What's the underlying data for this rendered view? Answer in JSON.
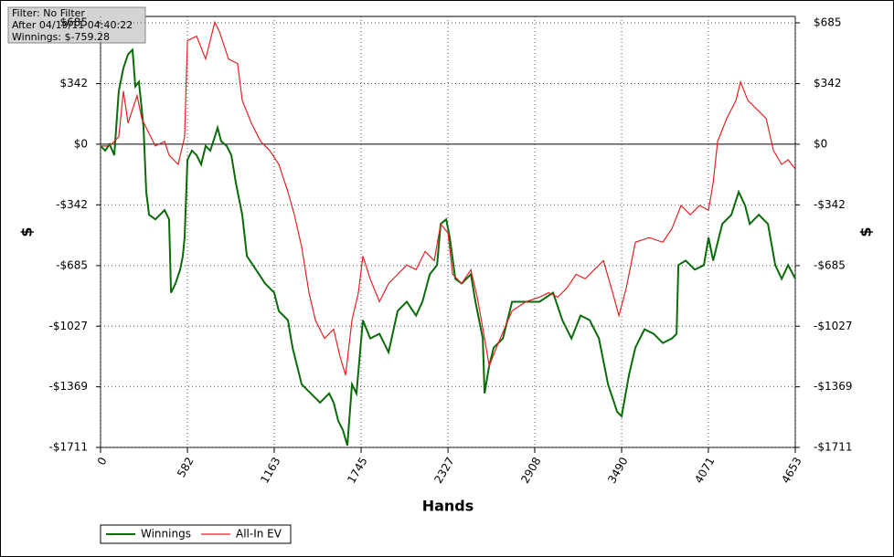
{
  "chart_data": {
    "type": "line",
    "annotations": [
      "Filter: No Filter",
      "After 04/19/11 04:40:22",
      "Winnings: $-759.28"
    ],
    "x_label": "Hands",
    "y_label": "$",
    "xlim": [
      0,
      4653
    ],
    "xticks": [
      0,
      582,
      1163,
      1745,
      2327,
      2908,
      3490,
      4071,
      4653
    ],
    "ylim": [
      -1711,
      721
    ],
    "yticks": [
      {
        "value": 685,
        "label": "$685"
      },
      {
        "value": 342,
        "label": "$342"
      },
      {
        "value": 0,
        "label": "$0"
      },
      {
        "value": -342,
        "label": "-$342"
      },
      {
        "value": -685,
        "label": "-$685"
      },
      {
        "value": -1027,
        "label": "-$1027"
      },
      {
        "value": -1369,
        "label": "-$1369"
      },
      {
        "value": -1711,
        "label": "-$1711"
      }
    ],
    "grid": true,
    "zero_line": true,
    "legend": "bottom-left",
    "series": [
      {
        "name": "Winnings",
        "color": "#0b6b0b",
        "x": [
          0,
          31,
          61,
          92,
          122,
          153,
          184,
          214,
          233,
          257,
          276,
          288,
          306,
          325,
          367,
          398,
          429,
          459,
          472,
          502,
          533,
          551,
          563,
          582,
          612,
          643,
          674,
          704,
          735,
          765,
          784,
          808,
          845,
          876,
          906,
          949,
          980,
          1041,
          1102,
          1163,
          1194,
          1255,
          1286,
          1347,
          1408,
          1470,
          1531,
          1561,
          1592,
          1623,
          1653,
          1684,
          1714,
          1757,
          1806,
          1868,
          1929,
          1990,
          2051,
          2113,
          2156,
          2205,
          2254,
          2278,
          2315,
          2339,
          2376,
          2419,
          2480,
          2511,
          2560,
          2572,
          2603,
          2633,
          2695,
          2756,
          2848,
          2940,
          3031,
          3093,
          3154,
          3215,
          3276,
          3338,
          3399,
          3460,
          3490,
          3539,
          3582,
          3643,
          3705,
          3766,
          3827,
          3858,
          3870,
          3919,
          3980,
          4041,
          4072,
          4103,
          4164,
          4225,
          4274,
          4317,
          4348,
          4409,
          4470,
          4519,
          4562,
          4605,
          4653
        ],
        "values": [
          -10,
          -36,
          0,
          -62,
          300,
          429,
          507,
          533,
          326,
          352,
          196,
          93,
          -269,
          -398,
          -424,
          -398,
          -372,
          -424,
          -838,
          -786,
          -708,
          -631,
          -527,
          -88,
          -36,
          -62,
          -114,
          -10,
          -36,
          41,
          93,
          16,
          -10,
          -62,
          -217,
          -398,
          -631,
          -708,
          -786,
          -838,
          -941,
          -993,
          -1148,
          -1355,
          -1406,
          -1458,
          -1406,
          -1458,
          -1561,
          -1613,
          -1700,
          -1355,
          -1406,
          -993,
          -1096,
          -1070,
          -1174,
          -941,
          -889,
          -967,
          -889,
          -734,
          -682,
          -450,
          -424,
          -527,
          -760,
          -786,
          -734,
          -889,
          -1096,
          -1406,
          -1251,
          -1148,
          -1096,
          -889,
          -889,
          -889,
          -838,
          -993,
          -1096,
          -967,
          -993,
          -1096,
          -1355,
          -1510,
          -1535,
          -1303,
          -1148,
          -1044,
          -1070,
          -1122,
          -1096,
          -1070,
          -682,
          -657,
          -708,
          -682,
          -527,
          -657,
          -450,
          -398,
          -269,
          -346,
          -450,
          -398,
          -450,
          -682,
          -760,
          -682,
          -759
        ]
      },
      {
        "name": "All-In EV",
        "color": "#e02424",
        "x": [
          0,
          61,
          122,
          153,
          184,
          214,
          245,
          276,
          306,
          367,
          429,
          459,
          520,
          563,
          582,
          643,
          704,
          765,
          796,
          857,
          918,
          949,
          1010,
          1072,
          1133,
          1194,
          1255,
          1298,
          1347,
          1396,
          1439,
          1500,
          1561,
          1604,
          1641,
          1684,
          1727,
          1757,
          1806,
          1868,
          1929,
          1990,
          2051,
          2113,
          2174,
          2235,
          2278,
          2327,
          2358,
          2419,
          2480,
          2523,
          2572,
          2603,
          2664,
          2756,
          2848,
          2940,
          3001,
          3062,
          3123,
          3185,
          3246,
          3307,
          3368,
          3430,
          3472,
          3521,
          3582,
          3674,
          3766,
          3827,
          3888,
          3950,
          4011,
          4072,
          4103,
          4133,
          4194,
          4256,
          4286,
          4335,
          4397,
          4458,
          4507,
          4562,
          4605,
          4653
        ],
        "values": [
          -10,
          -10,
          41,
          300,
          119,
          196,
          274,
          145,
          93,
          -10,
          16,
          -62,
          -114,
          41,
          584,
          610,
          481,
          688,
          636,
          481,
          455,
          248,
          119,
          16,
          -36,
          -114,
          -269,
          -398,
          -579,
          -838,
          -993,
          -1096,
          -1044,
          -1199,
          -1303,
          -993,
          -838,
          -631,
          -760,
          -889,
          -786,
          -734,
          -682,
          -708,
          -605,
          -657,
          -450,
          -501,
          -734,
          -786,
          -708,
          -863,
          -1096,
          -1251,
          -1122,
          -941,
          -889,
          -863,
          -838,
          -863,
          -812,
          -734,
          -760,
          -708,
          -657,
          -838,
          -967,
          -812,
          -553,
          -527,
          -553,
          -476,
          -346,
          -398,
          -346,
          -372,
          -217,
          16,
          145,
          248,
          352,
          248,
          196,
          145,
          -36,
          -114,
          -88,
          -140
        ]
      }
    ]
  }
}
